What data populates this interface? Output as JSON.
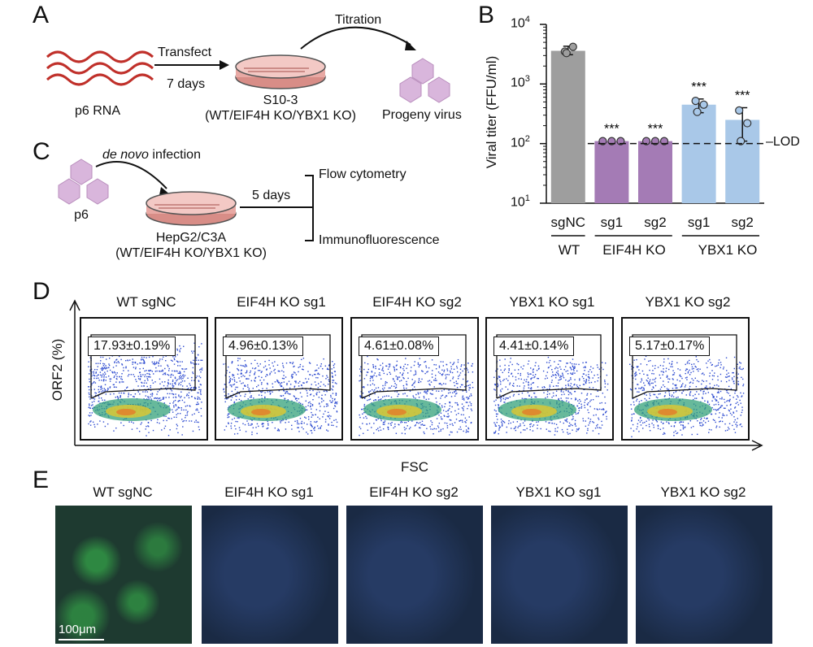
{
  "panel_a": {
    "label": "A",
    "rna_label": "p6 RNA",
    "step1_top": "Transfect",
    "step1_bottom": "7 days",
    "dish_label_line1": "S10-3",
    "dish_label_line2": "(WT/EIF4H KO/YBX1 KO)",
    "step2_top": "Titration",
    "virus_label": "Progeny virus"
  },
  "panel_c": {
    "label": "C",
    "infection_italic": "de novo",
    "infection_rest": " infection",
    "virus_label": "p6",
    "dish_label_line1": "HepG2/C3A",
    "dish_label_line2": "(WT/EIF4H KO/YBX1 KO)",
    "duration": "5 days",
    "branch1": "Flow cytometry",
    "branch2": "Immunofluorescence"
  },
  "panel_b": {
    "label": "B",
    "lod_label": "LOD",
    "group_labels": [
      "WT",
      "EIF4H KO",
      "YBX1 KO"
    ],
    "ytick_base": [
      "10",
      "10",
      "10",
      "10"
    ],
    "ytick_exp": [
      "1",
      "2",
      "3",
      "4"
    ]
  },
  "panel_d": {
    "label": "D",
    "ylabel": "ORF2 (%)",
    "xlabel": "FSC",
    "samples": [
      {
        "title": "WT sgNC",
        "pct": "17.93±0.19%"
      },
      {
        "title": "EIF4H KO sg1",
        "pct": "4.96±0.13%"
      },
      {
        "title": "EIF4H KO sg2",
        "pct": "4.61±0.08%"
      },
      {
        "title": "YBX1 KO sg1",
        "pct": "4.41±0.14%"
      },
      {
        "title": "YBX1 KO sg2",
        "pct": "5.17±0.17%"
      }
    ]
  },
  "panel_e": {
    "label": "E",
    "titles": [
      "WT sgNC",
      "EIF4H KO sg1",
      "EIF4H KO sg2",
      "YBX1 KO sg1",
      "YBX1 KO sg2"
    ],
    "scale_bar": "100μm"
  },
  "colors": {
    "wt_bar": "#9e9e9e",
    "eif4h_bar": "#a47bb5",
    "ybx1_bar": "#a9c8e8",
    "rna": "#c0302a",
    "dish": "#e8a9a4",
    "virus": "#d9b6dc"
  },
  "chart_data": {
    "type": "bar",
    "title": "",
    "ylabel": "Viral titer (FFU/ml)",
    "xlabel": "",
    "yscale": "log",
    "ylim": [
      10,
      10000
    ],
    "categories": [
      "sgNC",
      "sg1",
      "sg2",
      "sg1",
      "sg2"
    ],
    "groups": [
      "WT",
      "EIF4H KO",
      "EIF4H KO",
      "YBX1 KO",
      "YBX1 KO"
    ],
    "values": [
      3600,
      110,
      110,
      450,
      250
    ],
    "error_upper": [
      4300,
      110,
      110,
      560,
      400
    ],
    "error_lower": [
      3100,
      110,
      110,
      330,
      110
    ],
    "points": [
      [
        3500,
        4200,
        3300
      ],
      [
        110,
        110,
        110
      ],
      [
        110,
        110,
        110
      ],
      [
        520,
        450,
        340
      ],
      [
        360,
        220,
        110
      ]
    ],
    "significance": [
      "",
      "***",
      "***",
      "***",
      "***"
    ],
    "lod": 100,
    "lod_label": "LOD",
    "bar_colors": [
      "#9e9e9e",
      "#a47bb5",
      "#a47bb5",
      "#a9c8e8",
      "#a9c8e8"
    ]
  }
}
